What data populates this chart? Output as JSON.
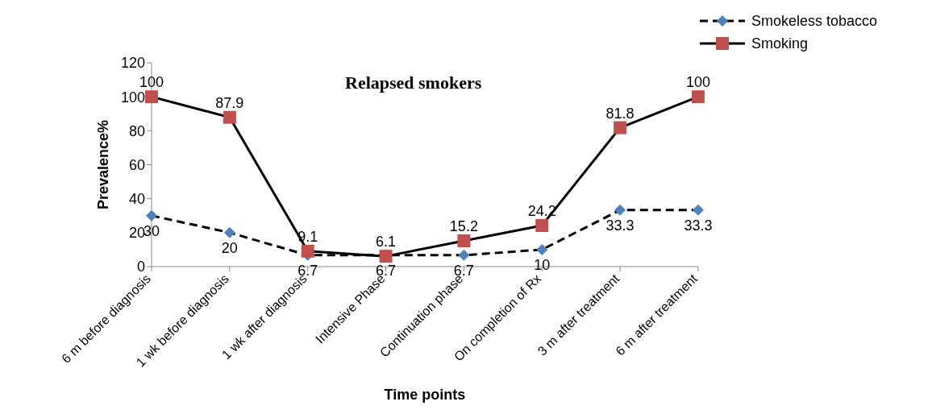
{
  "chart_data": {
    "type": "line",
    "title": "Relapsed smokers",
    "xlabel": "Time points",
    "ylabel": "Prevalence%",
    "categories": [
      "6 m before diagnosis",
      "1 wk before diagnosis",
      "1 wk after diagnosis",
      "Intensive Phase",
      "Continuation phase",
      "On completion of Rx",
      "3 m after treatment",
      "6 m after treatment"
    ],
    "series": [
      {
        "name": "Smokeless tobacco",
        "color": "#4f81bd",
        "values": [
          30,
          20,
          6.7,
          6.7,
          6.7,
          10,
          33.3,
          33.3
        ],
        "marker": "diamond",
        "line_style": "dashed"
      },
      {
        "name": "Smoking",
        "color": "#c0504d",
        "values": [
          100,
          87.9,
          9.1,
          6.1,
          15.2,
          24.2,
          81.8,
          100
        ],
        "marker": "square",
        "line_style": "solid"
      }
    ],
    "ylim": [
      0,
      120
    ],
    "yticks": [
      0,
      20,
      40,
      60,
      80,
      100,
      120
    ],
    "grid": false,
    "legend": "top right",
    "data_labels": true
  }
}
